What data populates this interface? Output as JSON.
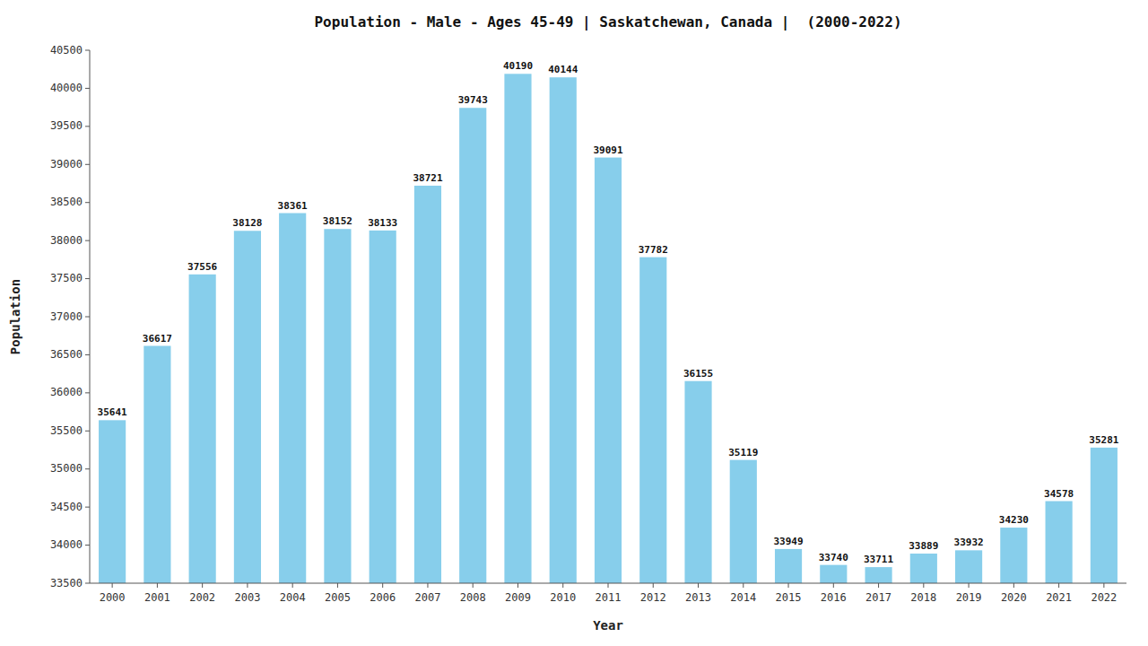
{
  "chart_data": {
    "type": "bar",
    "title": "Population - Male - Ages 45-49 | Saskatchewan, Canada |  (2000-2022)",
    "xlabel": "Year",
    "ylabel": "Population",
    "categories": [
      "2000",
      "2001",
      "2002",
      "2003",
      "2004",
      "2005",
      "2006",
      "2007",
      "2008",
      "2009",
      "2010",
      "2011",
      "2012",
      "2013",
      "2014",
      "2015",
      "2016",
      "2017",
      "2018",
      "2019",
      "2020",
      "2021",
      "2022"
    ],
    "values": [
      35641,
      36617,
      37556,
      38128,
      38361,
      38152,
      38133,
      38721,
      39743,
      40190,
      40144,
      39091,
      37782,
      36155,
      35119,
      33949,
      33740,
      33711,
      33889,
      33932,
      34230,
      34578,
      35281
    ],
    "color": "#87CEEB",
    "ylim": [
      33500,
      40500
    ],
    "yticks": [
      33500,
      34000,
      34500,
      35000,
      35500,
      36000,
      36500,
      37000,
      37500,
      38000,
      38500,
      39000,
      39500,
      40000,
      40500
    ],
    "grid": false,
    "data_labels": true
  }
}
